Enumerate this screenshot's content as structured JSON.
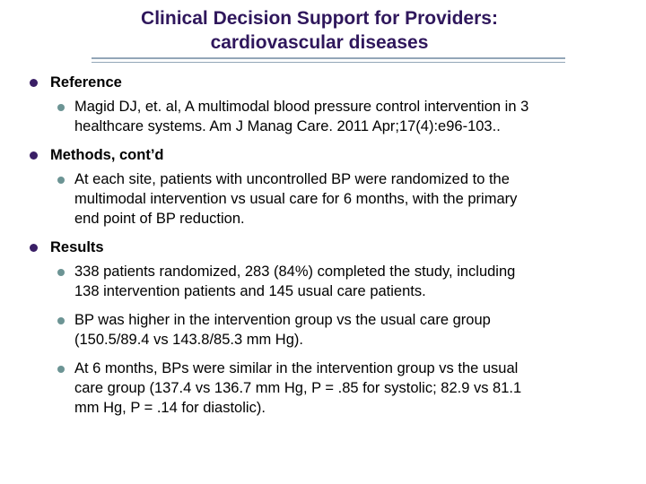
{
  "slide_title": {
    "text": "Clinical Decision Support for Providers:\ncardiovascular diseases"
  },
  "colors": {
    "title_text": "#2F175C",
    "body_text": "#000000",
    "level1_bullet": "#3A1F66",
    "level2_bullet": "#6C9494",
    "divider_line": "#93A6B8",
    "background": "#FFFFFF"
  },
  "bullets": [
    {
      "level": 1,
      "bold": true,
      "text": "Reference"
    },
    {
      "level": 2,
      "bold": false,
      "text": "Magid DJ, et. al, A multimodal blood pressure control intervention in 3\nhealthcare systems. Am J Manag Care. 2011 Apr;17(4):e96-103.."
    },
    {
      "level": 1,
      "bold": true,
      "text": "Methods, cont’d"
    },
    {
      "level": 2,
      "bold": false,
      "text": "At each site, patients with uncontrolled BP were randomized to the\nmultimodal intervention vs usual care for 6 months, with the primary\nend point of BP reduction."
    },
    {
      "level": 1,
      "bold": true,
      "text": "Results"
    },
    {
      "level": 2,
      "bold": false,
      "text": "338 patients randomized, 283 (84%) completed the study, including\n138 intervention patients and 145 usual care patients."
    },
    {
      "level": 2,
      "bold": false,
      "text": "BP was higher in the intervention group vs the usual care group\n(150.5/89.4 vs 143.8/85.3 mm Hg)."
    },
    {
      "level": 2,
      "bold": false,
      "text": "At 6 months, BPs were similar in the intervention group vs the usual\ncare group (137.4 vs 136.7 mm Hg, P = .85 for systolic; 82.9 vs 81.1\nmm Hg, P = .14 for diastolic)."
    }
  ]
}
